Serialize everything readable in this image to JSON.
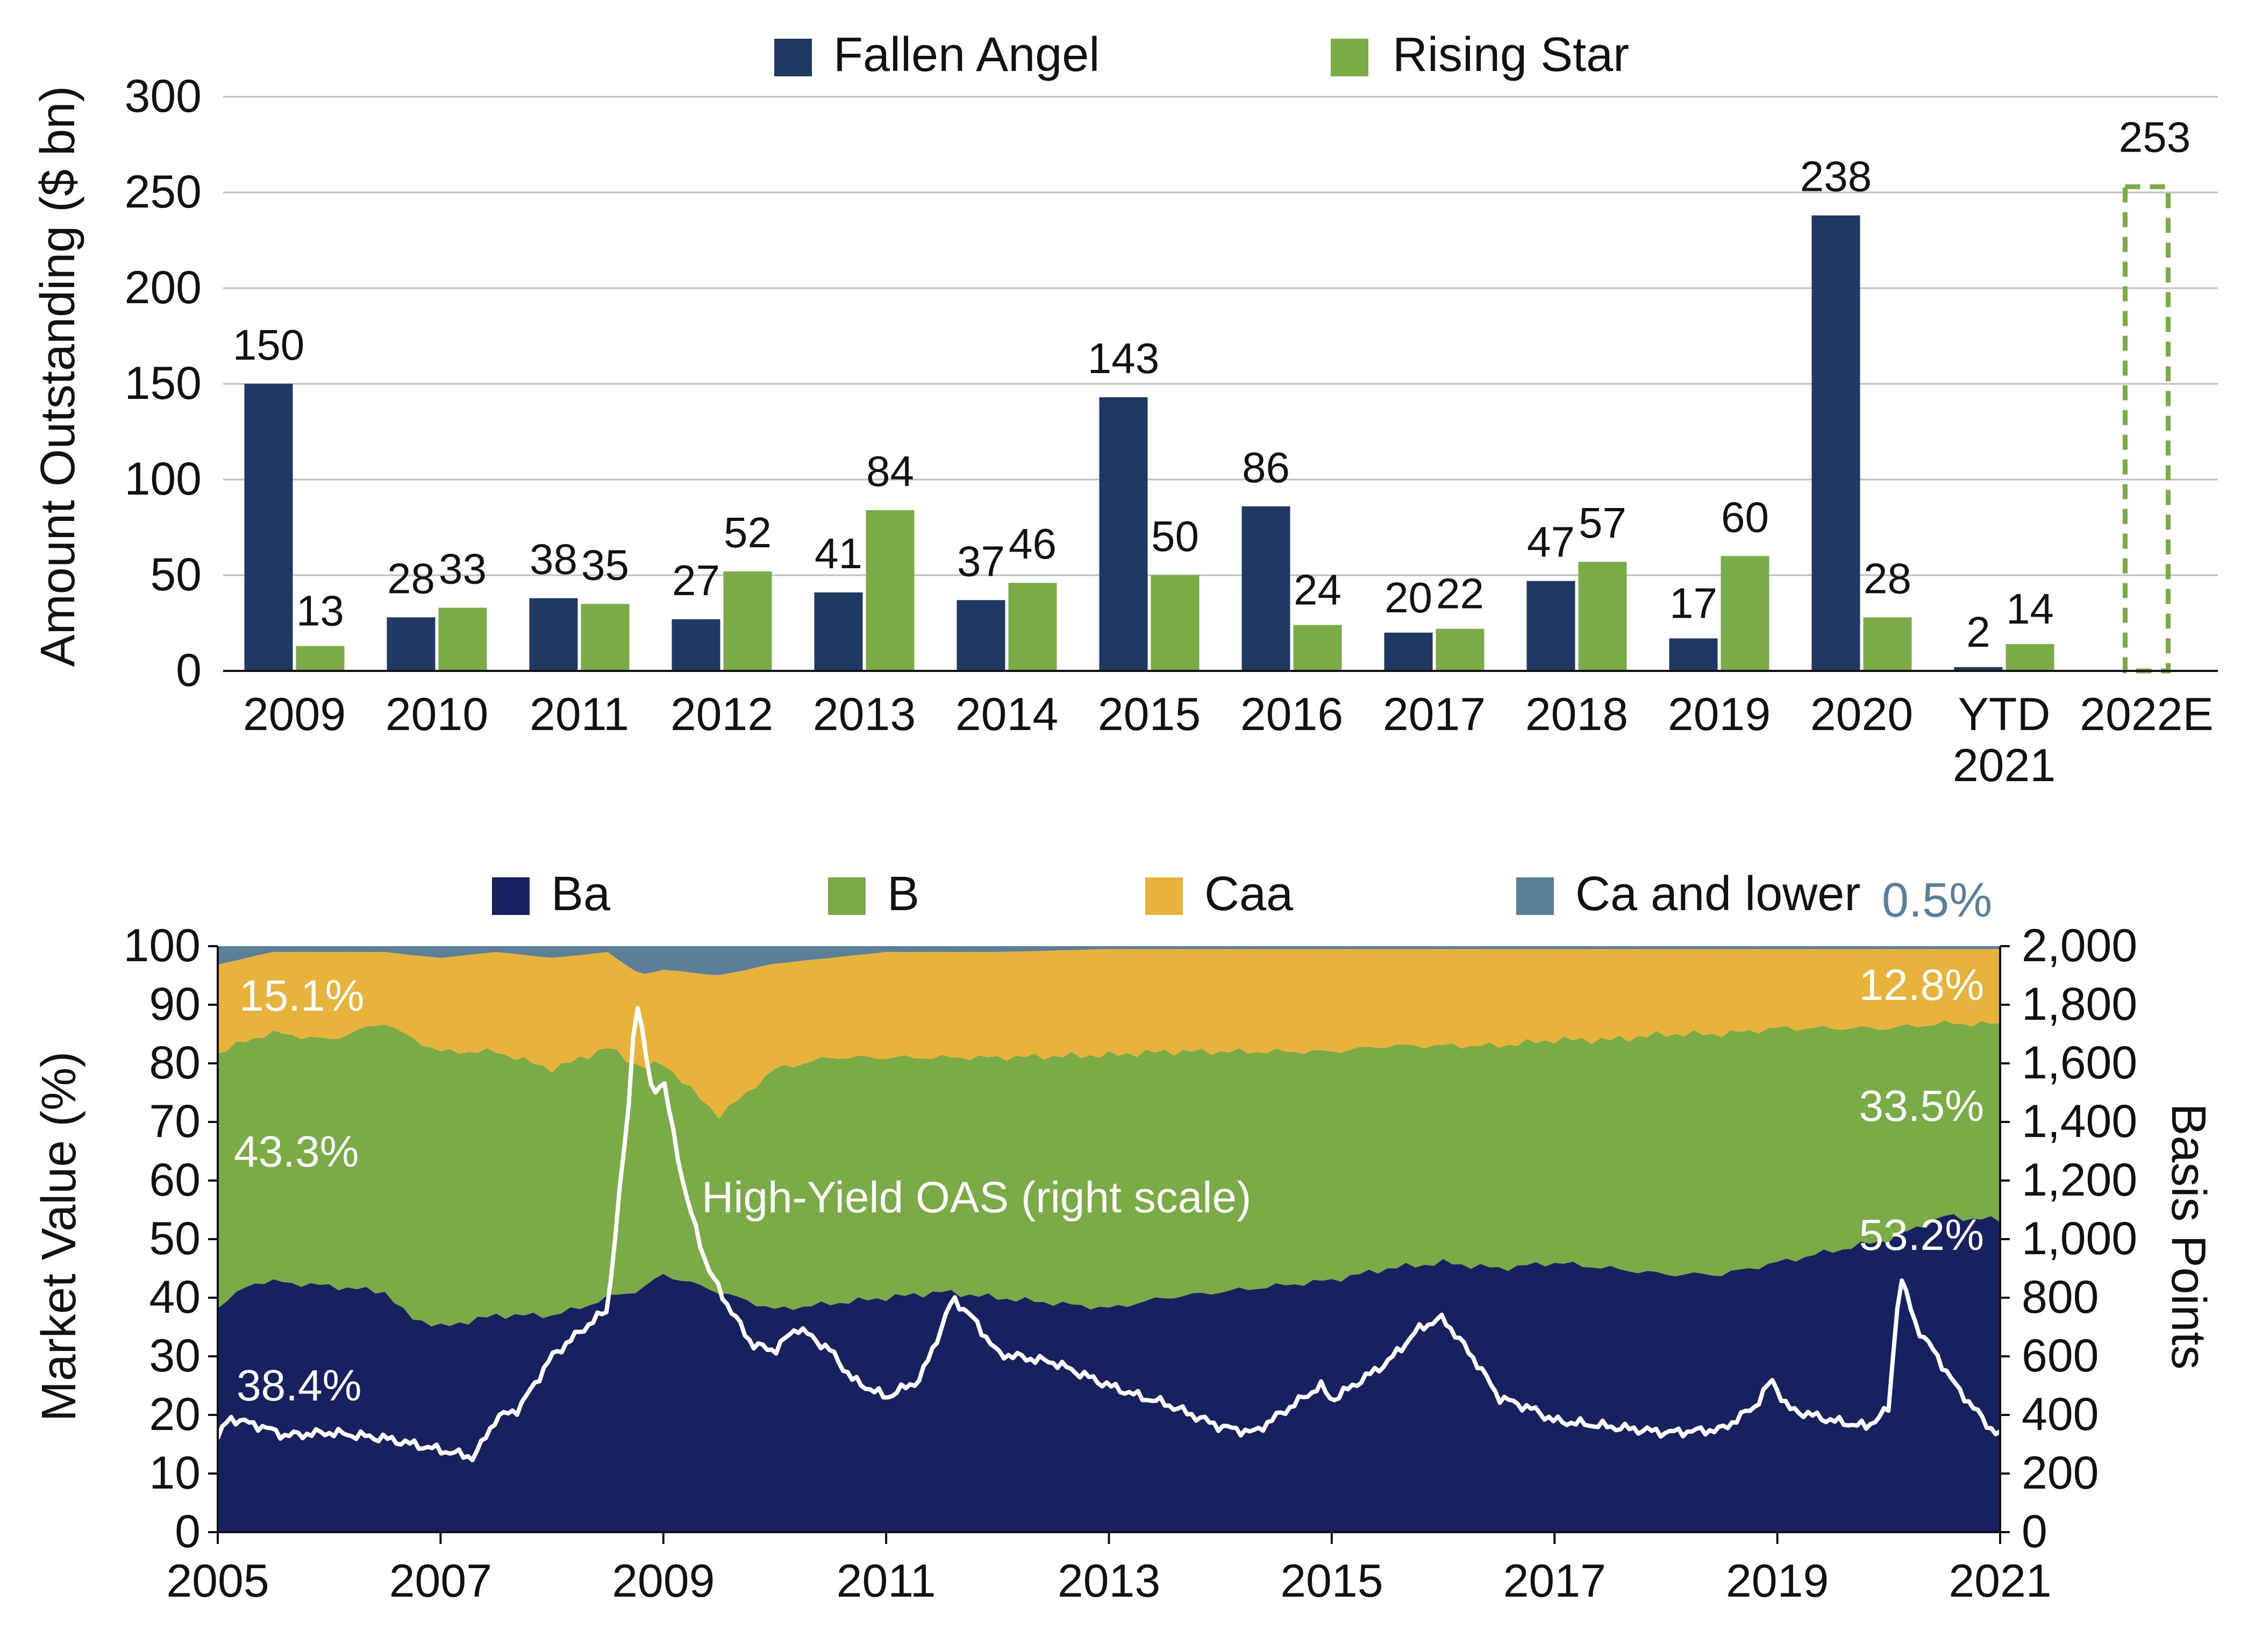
{
  "chart_data": [
    {
      "type": "bar",
      "categories": [
        "2009",
        "2010",
        "2011",
        "2012",
        "2013",
        "2014",
        "2015",
        "2016",
        "2017",
        "2018",
        "2019",
        "2020",
        "YTD\n2021",
        "2022E"
      ],
      "series": [
        {
          "name": "Fallen Angel",
          "color": "#1f3864",
          "values": [
            150,
            28,
            38,
            27,
            41,
            37,
            143,
            86,
            20,
            47,
            17,
            238,
            2,
            null
          ]
        },
        {
          "name": "Rising Star",
          "color": "#7aab47",
          "values": [
            13,
            33,
            35,
            52,
            84,
            46,
            50,
            24,
            22,
            57,
            60,
            28,
            14,
            null
          ]
        }
      ],
      "estimate": {
        "category": "2022E",
        "value": 253,
        "label": "253",
        "style": "dashed",
        "color": "#7aab47"
      },
      "ylabel": "Amount Outstanding ($ bn)",
      "ylim": [
        0,
        300
      ],
      "yticks": [
        "0",
        "50",
        "100",
        "150",
        "200",
        "250",
        "300"
      ],
      "grid": true,
      "legend": "top-center"
    },
    {
      "type": "area",
      "x_start": 2005,
      "x_end": 2021,
      "xticks": [
        "2005",
        "2007",
        "2009",
        "2011",
        "2013",
        "2015",
        "2017",
        "2019",
        "2021"
      ],
      "series": [
        {
          "name": "Ba",
          "color": "#17215f",
          "anchors": [
            [
              2005.0,
              38.4
            ],
            [
              2005.1,
              40
            ],
            [
              2005.3,
              44
            ],
            [
              2005.6,
              43
            ],
            [
              2006.0,
              42
            ],
            [
              2006.5,
              41
            ],
            [
              2006.7,
              36
            ],
            [
              2007.0,
              35
            ],
            [
              2007.5,
              37
            ],
            [
              2008.0,
              37
            ],
            [
              2008.3,
              38
            ],
            [
              2008.7,
              41
            ],
            [
              2009.0,
              44
            ],
            [
              2009.5,
              41
            ],
            [
              2010.0,
              38
            ],
            [
              2010.5,
              39
            ],
            [
              2011.0,
              40
            ],
            [
              2011.5,
              41
            ],
            [
              2012.0,
              40
            ],
            [
              2012.5,
              39
            ],
            [
              2013.0,
              38
            ],
            [
              2013.5,
              40
            ],
            [
              2014.0,
              41
            ],
            [
              2014.5,
              42
            ],
            [
              2015.0,
              43
            ],
            [
              2015.5,
              45
            ],
            [
              2016.0,
              46
            ],
            [
              2016.5,
              45
            ],
            [
              2017.0,
              46
            ],
            [
              2017.5,
              45
            ],
            [
              2018.0,
              44
            ],
            [
              2018.5,
              44
            ],
            [
              2019.0,
              46
            ],
            [
              2019.5,
              48
            ],
            [
              2020.0,
              50
            ],
            [
              2020.5,
              54
            ],
            [
              2021.0,
              53.2
            ]
          ]
        },
        {
          "name": "B",
          "color": "#7aab47",
          "anchors": [
            [
              2005.0,
              43.3
            ],
            [
              2005.5,
              43
            ],
            [
              2006.0,
              42
            ],
            [
              2006.5,
              46
            ],
            [
              2007.0,
              47
            ],
            [
              2007.5,
              45
            ],
            [
              2008.0,
              42
            ],
            [
              2008.5,
              42
            ],
            [
              2009.0,
              36
            ],
            [
              2009.5,
              30
            ],
            [
              2010.0,
              41
            ],
            [
              2010.5,
              42
            ],
            [
              2011.0,
              41
            ],
            [
              2011.5,
              40
            ],
            [
              2012.0,
              41
            ],
            [
              2012.5,
              42
            ],
            [
              2013.0,
              43
            ],
            [
              2013.5,
              42
            ],
            [
              2014.0,
              41
            ],
            [
              2014.5,
              40
            ],
            [
              2015.0,
              39
            ],
            [
              2015.5,
              38
            ],
            [
              2016.0,
              37
            ],
            [
              2016.5,
              38
            ],
            [
              2017.0,
              38
            ],
            [
              2017.5,
              39
            ],
            [
              2018.0,
              41
            ],
            [
              2018.5,
              41
            ],
            [
              2019.0,
              40
            ],
            [
              2019.5,
              38
            ],
            [
              2020.0,
              36
            ],
            [
              2020.5,
              33
            ],
            [
              2021.0,
              33.5
            ]
          ]
        },
        {
          "name": "Caa",
          "color": "#e8b33b",
          "anchors": [
            [
              2005.0,
              15.1
            ],
            [
              2005.5,
              14
            ],
            [
              2006.0,
              15
            ],
            [
              2006.5,
              12
            ],
            [
              2007.0,
              16
            ],
            [
              2007.5,
              17
            ],
            [
              2008.0,
              19
            ],
            [
              2008.5,
              16
            ],
            [
              2009.0,
              16
            ],
            [
              2009.5,
              24
            ],
            [
              2010.0,
              18
            ],
            [
              2010.5,
              17
            ],
            [
              2011.0,
              18
            ],
            [
              2011.5,
              18
            ],
            [
              2012.0,
              18
            ],
            [
              2012.5,
              18
            ],
            [
              2013.0,
              18
            ],
            [
              2013.5,
              17.5
            ],
            [
              2014.0,
              17.5
            ],
            [
              2014.5,
              17.5
            ],
            [
              2015.0,
              17.5
            ],
            [
              2015.5,
              16.5
            ],
            [
              2016.0,
              16.5
            ],
            [
              2016.5,
              16.5
            ],
            [
              2017.0,
              15.5
            ],
            [
              2017.5,
              15.5
            ],
            [
              2018.0,
              14.5
            ],
            [
              2018.5,
              14.5
            ],
            [
              2019.0,
              13.5
            ],
            [
              2019.5,
              13.5
            ],
            [
              2020.0,
              13.5
            ],
            [
              2020.5,
              12.7
            ],
            [
              2021.0,
              12.8
            ]
          ]
        },
        {
          "name": "Ca and lower",
          "color": "#5b7f99",
          "anchors": [
            [
              2005.0,
              3.2
            ],
            [
              2005.5,
              1
            ],
            [
              2006.0,
              1
            ],
            [
              2006.5,
              1
            ],
            [
              2007.0,
              2
            ],
            [
              2007.5,
              1
            ],
            [
              2008.0,
              2
            ],
            [
              2008.5,
              1
            ],
            [
              2008.8,
              5
            ],
            [
              2009.0,
              4
            ],
            [
              2009.5,
              5
            ],
            [
              2010.0,
              3
            ],
            [
              2010.5,
              2
            ],
            [
              2011.0,
              1
            ],
            [
              2012.0,
              1
            ],
            [
              2013.0,
              0.5
            ],
            [
              2014.0,
              0.5
            ],
            [
              2015.0,
              0.5
            ],
            [
              2016.0,
              0.5
            ],
            [
              2017.0,
              0.5
            ],
            [
              2018.0,
              0.5
            ],
            [
              2019.0,
              0.5
            ],
            [
              2020.0,
              0.5
            ],
            [
              2021.0,
              0.5
            ]
          ]
        },
        {
          "name": "High-Yield OAS (right scale)",
          "color": "#ffffff",
          "axis": "right",
          "anchors": [
            [
              2005.0,
              320
            ],
            [
              2005.1,
              390
            ],
            [
              2005.4,
              360
            ],
            [
              2005.6,
              330
            ],
            [
              2006.0,
              340
            ],
            [
              2006.5,
              320
            ],
            [
              2007.0,
              280
            ],
            [
              2007.3,
              255
            ],
            [
              2007.5,
              390
            ],
            [
              2007.7,
              420
            ],
            [
              2008.0,
              600
            ],
            [
              2008.3,
              700
            ],
            [
              2008.5,
              760
            ],
            [
              2008.7,
              1500
            ],
            [
              2008.75,
              1840
            ],
            [
              2008.9,
              1500
            ],
            [
              2009.0,
              1540
            ],
            [
              2009.2,
              1150
            ],
            [
              2009.4,
              900
            ],
            [
              2009.6,
              760
            ],
            [
              2009.8,
              640
            ],
            [
              2010.0,
              620
            ],
            [
              2010.2,
              700
            ],
            [
              2010.5,
              620
            ],
            [
              2010.7,
              520
            ],
            [
              2011.0,
              460
            ],
            [
              2011.3,
              520
            ],
            [
              2011.5,
              700
            ],
            [
              2011.6,
              800
            ],
            [
              2011.8,
              720
            ],
            [
              2012.0,
              610
            ],
            [
              2012.5,
              580
            ],
            [
              2013.0,
              500
            ],
            [
              2013.3,
              460
            ],
            [
              2013.5,
              440
            ],
            [
              2014.0,
              360
            ],
            [
              2014.3,
              340
            ],
            [
              2014.6,
              420
            ],
            [
              2014.9,
              500
            ],
            [
              2015.0,
              450
            ],
            [
              2015.5,
              580
            ],
            [
              2015.8,
              700
            ],
            [
              2016.0,
              730
            ],
            [
              2016.3,
              580
            ],
            [
              2016.5,
              460
            ],
            [
              2016.8,
              420
            ],
            [
              2017.0,
              380
            ],
            [
              2017.5,
              360
            ],
            [
              2018.0,
              340
            ],
            [
              2018.5,
              350
            ],
            [
              2018.8,
              430
            ],
            [
              2018.95,
              520
            ],
            [
              2019.1,
              420
            ],
            [
              2019.5,
              380
            ],
            [
              2019.8,
              360
            ],
            [
              2020.0,
              420
            ],
            [
              2020.1,
              880
            ],
            [
              2020.25,
              700
            ],
            [
              2020.4,
              620
            ],
            [
              2020.6,
              500
            ],
            [
              2020.9,
              360
            ],
            [
              2021.0,
              330
            ]
          ]
        }
      ],
      "ylabel": "Market Value (%)",
      "ylim": [
        0,
        100
      ],
      "yticks": [
        "0",
        "10",
        "20",
        "30",
        "40",
        "50",
        "60",
        "70",
        "80",
        "90",
        "100"
      ],
      "y2label": "Basis Points",
      "y2lim": [
        0,
        2000
      ],
      "y2ticks": [
        "0",
        "200",
        "400",
        "600",
        "800",
        "1,000",
        "1,200",
        "1,400",
        "1,600",
        "1,800",
        "2,000"
      ],
      "annotations": {
        "ba_start": "38.4%",
        "b_start": "43.3%",
        "caa_start": "15.1%",
        "ba_end": "53.2%",
        "b_end": "33.5%",
        "caa_end": "12.8%",
        "ca_end": "0.5%",
        "oas_label": "High-Yield OAS (right scale)"
      },
      "legend": "top-center"
    }
  ]
}
